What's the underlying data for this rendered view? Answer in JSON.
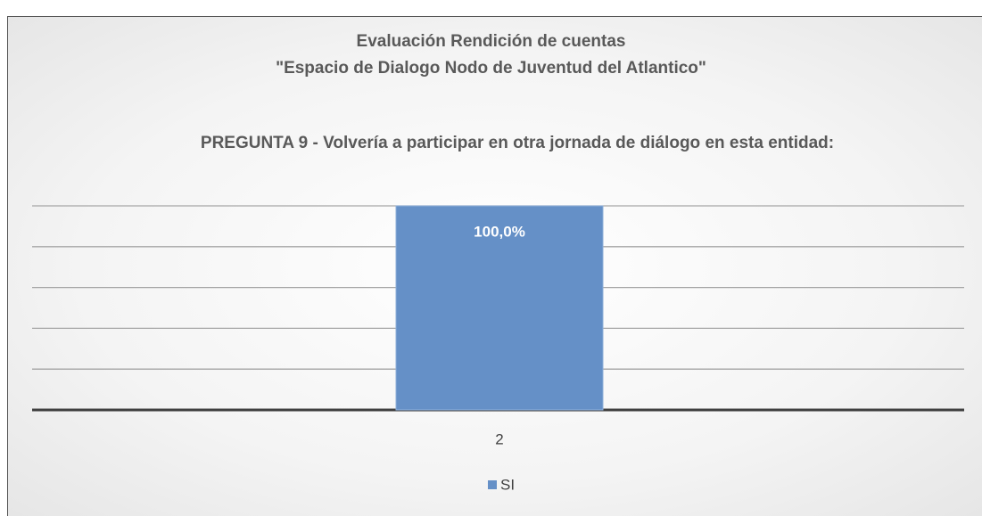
{
  "chart_data": {
    "type": "bar",
    "title": [
      "Evaluación Rendición de cuentas",
      "\"Espacio de Dialogo Nodo de Juventud del Atlantico\""
    ],
    "subtitle": "PREGUNTA 9 - Volvería a participar en otra jornada de diálogo en esta entidad:",
    "categories": [
      "2"
    ],
    "series": [
      {
        "name": "SI",
        "color": "#6590c7",
        "values": [
          100
        ],
        "value_labels": [
          "100,0%"
        ]
      }
    ],
    "ylim": [
      0,
      100
    ],
    "yticks": [
      0,
      20,
      40,
      60,
      80,
      100
    ],
    "grid": true,
    "legend": "bottom"
  }
}
